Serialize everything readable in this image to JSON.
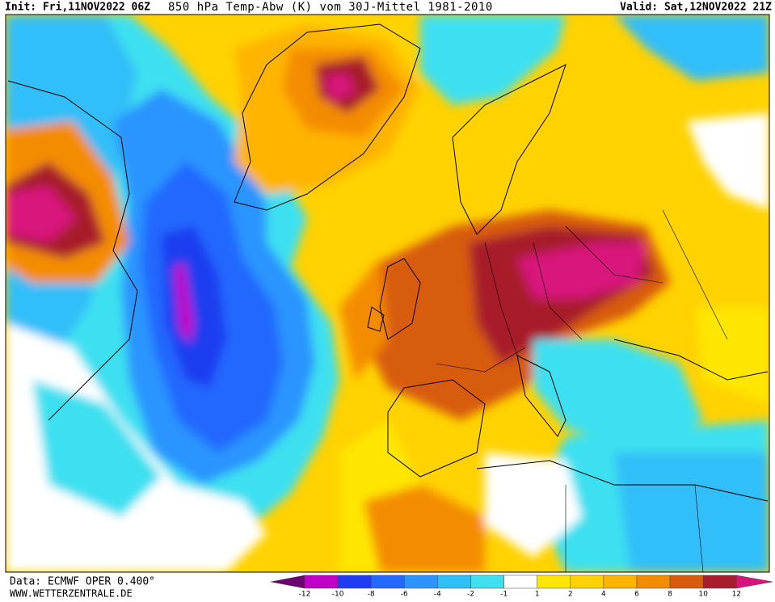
{
  "header": {
    "init": "Init: Fri,11NOV2022 06Z",
    "title": "850 hPa Temp-Abw (K) vom 30J-Mittel 1981-2010",
    "valid": "Valid: Sat,12NOV2022 21Z"
  },
  "footer": {
    "source": "Data: ECMWF OPER 0.400°",
    "site": "WWW.WETTERZENTRALE.DE"
  },
  "colorbar": {
    "ticks": [
      -12,
      -10,
      -8,
      -6,
      -4,
      -2,
      -1,
      1,
      2,
      4,
      6,
      8,
      10,
      12
    ],
    "colors": [
      "#6c0070",
      "#c000c8",
      "#1e3cf0",
      "#2468ff",
      "#2c94ff",
      "#30bef8",
      "#3ee0f0",
      "#ffffff",
      "#ffe600",
      "#ffd200",
      "#ffb400",
      "#f48c00",
      "#d85c0c",
      "#a81c2c",
      "#d8147c"
    ]
  }
}
